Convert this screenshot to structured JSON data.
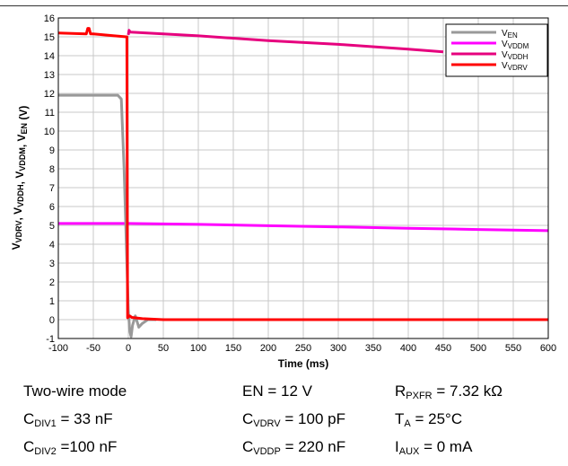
{
  "chart_data": {
    "type": "line",
    "xlabel": "Time (ms)",
    "ylabel_parts": [
      {
        "t": "V",
        "s": "VDRV"
      },
      {
        "t": ", V",
        "s": "VDDH"
      },
      {
        "t": ", V",
        "s": "VDDM"
      },
      {
        "t": ", V",
        "s": "EN"
      },
      {
        "t": " (V)",
        "s": ""
      }
    ],
    "xlim": [
      -100,
      600
    ],
    "ylim": [
      -1,
      16
    ],
    "xticks": [
      -100,
      -50,
      0,
      50,
      100,
      150,
      200,
      250,
      300,
      350,
      400,
      450,
      500,
      550,
      600
    ],
    "yticks": [
      -1,
      0,
      1,
      2,
      3,
      4,
      5,
      6,
      7,
      8,
      9,
      10,
      11,
      12,
      13,
      14,
      15,
      16
    ],
    "grid": true,
    "legend_position": "top-right",
    "series": [
      {
        "name_base": "V",
        "name_sub": "EN",
        "color": "#999999",
        "x": [
          -100,
          -15,
          -10,
          -6,
          -2,
          0,
          2,
          4,
          6,
          10,
          15,
          20,
          28,
          40
        ],
        "y": [
          11.9,
          11.9,
          11.7,
          8.0,
          3.0,
          0.5,
          -0.6,
          -0.9,
          -0.3,
          0.2,
          -0.4,
          -0.2,
          0.0,
          0.0
        ]
      },
      {
        "name_base": "V",
        "name_sub": "VDDM",
        "color": "#ff00ff",
        "x": [
          -100,
          0,
          100,
          200,
          300,
          400,
          500,
          600
        ],
        "y": [
          5.1,
          5.1,
          5.05,
          4.98,
          4.92,
          4.85,
          4.78,
          4.72
        ]
      },
      {
        "name_base": "V",
        "name_sub": "VDDH",
        "color": "#e6007e",
        "x": [
          0,
          1,
          3,
          100,
          200,
          300,
          400,
          450
        ],
        "y": [
          15.1,
          15.35,
          15.25,
          15.05,
          14.8,
          14.6,
          14.35,
          14.2
        ]
      },
      {
        "name_base": "V",
        "name_sub": "VDRV",
        "color": "#ff0000",
        "x": [
          -100,
          -60,
          -58,
          -56,
          -54,
          -50,
          -20,
          -3,
          -2,
          -1,
          0,
          2,
          5,
          20,
          50,
          100,
          200,
          300,
          400,
          500,
          600
        ],
        "y": [
          15.2,
          15.15,
          15.45,
          15.45,
          15.15,
          15.15,
          15.05,
          15.0,
          15.0,
          0.1,
          0.15,
          0.2,
          0.12,
          0.05,
          0.0,
          0.0,
          0.0,
          0.0,
          0.0,
          0.0,
          0.0
        ]
      }
    ]
  },
  "conditions": [
    [
      [
        {
          "t": "Two-wire mode",
          "s": ""
        }
      ],
      [
        {
          "t": "EN = 12 V",
          "s": ""
        }
      ],
      [
        {
          "t": "R",
          "s": "PXFR"
        },
        {
          "t": " = 7.32 kΩ",
          "s": ""
        }
      ]
    ],
    [
      [
        {
          "t": "C",
          "s": "DIV1"
        },
        {
          "t": " = 33 nF",
          "s": ""
        }
      ],
      [
        {
          "t": "C",
          "s": "VDRV"
        },
        {
          "t": " = 100 pF",
          "s": ""
        }
      ],
      [
        {
          "t": "T",
          "s": "A"
        },
        {
          "t": " = 25°C",
          "s": ""
        }
      ]
    ],
    [
      [
        {
          "t": "C",
          "s": "DIV2"
        },
        {
          "t": " =100 nF",
          "s": ""
        }
      ],
      [
        {
          "t": "C",
          "s": "VDDP"
        },
        {
          "t": " = 220 nF",
          "s": ""
        }
      ],
      [
        {
          "t": "I",
          "s": "AUX"
        },
        {
          "t": " = 0 mA",
          "s": ""
        }
      ]
    ]
  ]
}
